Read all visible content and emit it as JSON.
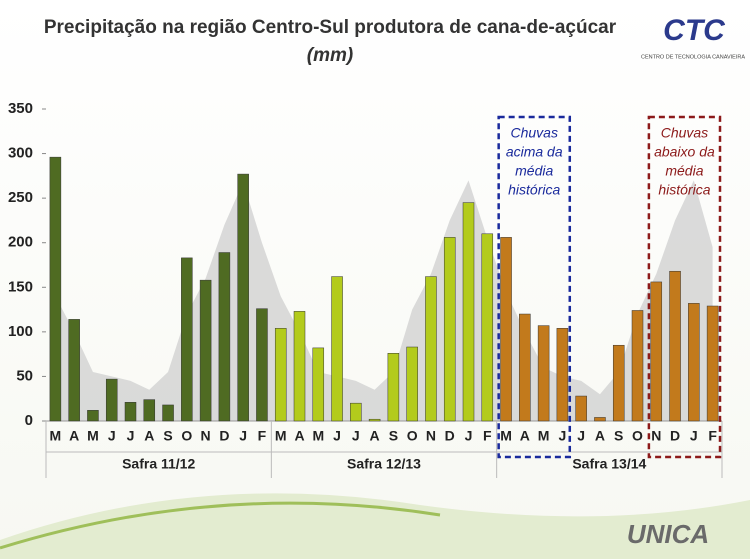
{
  "chart_data": {
    "type": "bar",
    "title": "Precipitação na região Centro-Sul produtora de cana-de-açúcar",
    "unit": "(mm)",
    "ylim": [
      0,
      350
    ],
    "yticks": [
      0,
      50,
      100,
      150,
      200,
      250,
      300,
      350
    ],
    "grid": false,
    "groups": [
      {
        "label": "Safra 11/12",
        "color": "#4f6b22",
        "categories": [
          "M",
          "A",
          "M",
          "J",
          "J",
          "A",
          "S",
          "O",
          "N",
          "D",
          "J",
          "F"
        ],
        "values": [
          296,
          114,
          12,
          47,
          21,
          24,
          18,
          183,
          158,
          189,
          277,
          126
        ]
      },
      {
        "label": "Safra 12/13",
        "color": "#b3cb1c",
        "categories": [
          "M",
          "A",
          "M",
          "J",
          "J",
          "A",
          "S",
          "O",
          "N",
          "D",
          "J",
          "F"
        ],
        "values": [
          104,
          123,
          82,
          162,
          20,
          2,
          76,
          83,
          162,
          206,
          245,
          210
        ]
      },
      {
        "label": "Safra 13/14",
        "color": "#c27a1c",
        "categories": [
          "M",
          "A",
          "M",
          "J",
          "J",
          "A",
          "S",
          "O",
          "N",
          "D",
          "J",
          "F"
        ],
        "values": [
          206,
          120,
          107,
          104,
          28,
          4,
          85,
          124,
          156,
          168,
          132,
          129
        ]
      }
    ],
    "area": {
      "color": "#d3d3d3",
      "values": [
        140,
        100,
        55,
        50,
        45,
        35,
        55,
        120,
        160,
        220,
        268,
        200,
        140,
        100,
        55,
        50,
        45,
        35,
        55,
        125,
        165,
        225,
        270,
        205,
        145,
        100,
        60,
        50,
        45,
        30,
        55,
        120,
        165,
        225,
        270,
        195
      ]
    },
    "annotations": [
      {
        "lines": [
          "Chuvas",
          "acima da",
          "média",
          "histórica"
        ],
        "color": "#1a2a9c"
      },
      {
        "lines": [
          "Chuvas",
          "abaixo da",
          "média",
          "histórica"
        ],
        "color": "#8c1a1a"
      }
    ]
  },
  "logos": {
    "ctc": "CTC",
    "ctc_subtitle": "CENTRO DE TECNOLOGIA CANAVIEIRA",
    "unica": "UNICA"
  }
}
